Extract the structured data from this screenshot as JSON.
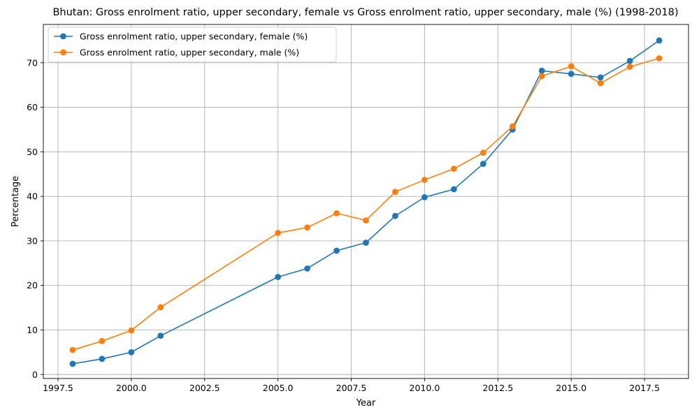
{
  "chart_data": {
    "type": "line",
    "title": "Bhutan: Gross enrolment ratio, upper secondary, female vs Gross enrolment ratio, upper secondary, male (%) (1998-2018)",
    "xlabel": "Year",
    "ylabel": "Percentage",
    "xlim": [
      1997.0,
      2019.0
    ],
    "ylim": [
      -0.9,
      78.6
    ],
    "xticks": [
      1997.5,
      2000.0,
      2002.5,
      2005.0,
      2007.5,
      2010.0,
      2012.5,
      2015.0,
      2017.5
    ],
    "xtick_labels": [
      "1997.5",
      "2000.0",
      "2002.5",
      "2005.0",
      "2007.5",
      "2010.0",
      "2012.5",
      "2015.0",
      "2017.5"
    ],
    "yticks": [
      0,
      10,
      20,
      30,
      40,
      50,
      60,
      70
    ],
    "ytick_labels": [
      "0",
      "10",
      "20",
      "30",
      "40",
      "50",
      "60",
      "70"
    ],
    "grid": true,
    "legend_position": "upper-left",
    "x": [
      1998,
      1999,
      2000,
      2001,
      2005,
      2006,
      2007,
      2008,
      2009,
      2010,
      2011,
      2012,
      2013,
      2014,
      2015,
      2016,
      2017,
      2018
    ],
    "series": [
      {
        "name": "Gross enrolment ratio, upper secondary, female (%)",
        "color": "#1f77b4",
        "values": [
          2.4,
          3.5,
          5.0,
          8.7,
          21.9,
          23.8,
          27.8,
          29.6,
          35.6,
          39.8,
          41.6,
          47.3,
          55.0,
          68.2,
          67.5,
          66.7,
          70.4,
          75.0
        ]
      },
      {
        "name": "Gross enrolment ratio, upper secondary, male (%)",
        "color": "#ff7f0e",
        "values": [
          5.5,
          7.5,
          9.9,
          15.1,
          31.8,
          33.0,
          36.2,
          34.6,
          41.0,
          43.7,
          46.2,
          49.8,
          55.7,
          67.0,
          69.2,
          65.4,
          69.1,
          71.0
        ]
      }
    ]
  }
}
